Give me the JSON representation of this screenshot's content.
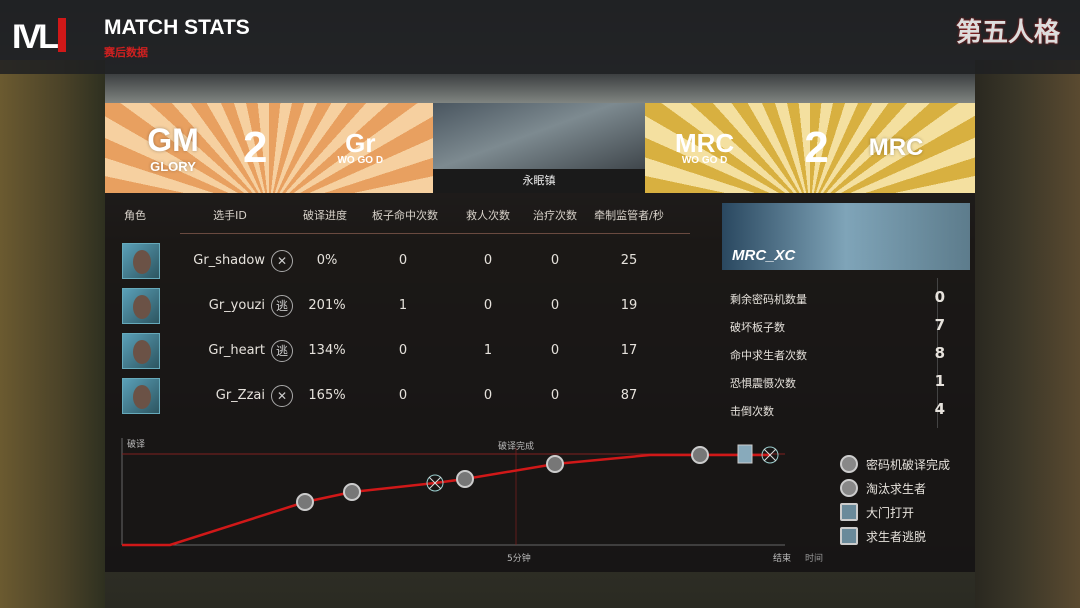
{
  "header": {
    "logo": "IVL",
    "title": "MATCH STATS",
    "subtitle": "赛后数据",
    "brand": "第五人格"
  },
  "teams": {
    "left": {
      "logo": "GM",
      "logo_sub": "GLORY",
      "score": "2",
      "tag": "Gr",
      "tag_sub": "WO GO D",
      "color": "#e8a060"
    },
    "right": {
      "logo": "MRC",
      "logo_sub": "WO GO D",
      "score": "2",
      "tag": "MRC",
      "color": "#d8b040"
    }
  },
  "map": {
    "name": "永眠镇"
  },
  "table": {
    "headers": [
      "角色",
      "选手ID",
      "破译进度",
      "板子命中次数",
      "救人次数",
      "治疗次数",
      "牵制监管者/秒"
    ],
    "rows": [
      {
        "player": "Gr_shadow",
        "status_icon": "eliminated-icon",
        "decode": "0%",
        "pallet_hits": "0",
        "rescues": "0",
        "heals": "0",
        "kite_seconds": "25"
      },
      {
        "player": "Gr_youzi",
        "status_icon": "escaped-icon",
        "decode": "201%",
        "pallet_hits": "1",
        "rescues": "0",
        "heals": "0",
        "kite_seconds": "19"
      },
      {
        "player": "Gr_heart",
        "status_icon": "escaped-icon",
        "decode": "134%",
        "pallet_hits": "0",
        "rescues": "1",
        "heals": "0",
        "kite_seconds": "17"
      },
      {
        "player": "Gr_Zzai",
        "status_icon": "eliminated-icon",
        "decode": "165%",
        "pallet_hits": "0",
        "rescues": "0",
        "heals": "0",
        "kite_seconds": "87"
      }
    ]
  },
  "hunter": {
    "player": "MRC_XC",
    "stats": [
      {
        "label": "剩余密码机数量",
        "value": "0"
      },
      {
        "label": "破坏板子数",
        "value": "7"
      },
      {
        "label": "命中求生者次数",
        "value": "8"
      },
      {
        "label": "恐惧震慑次数",
        "value": "1"
      },
      {
        "label": "击倒次数",
        "value": "4"
      }
    ]
  },
  "chart": {
    "ylabel": "破译",
    "threshold_label": "破译完成",
    "mid_label": "5分钟",
    "end_label": "结束",
    "xlabel": "时间",
    "line_color": "#d01818",
    "legend": [
      {
        "icon": "cipher-complete-icon",
        "label": "密码机破译完成"
      },
      {
        "icon": "eliminate-icon",
        "label": "淘汰求生者"
      },
      {
        "icon": "gate-open-icon",
        "label": "大门打开"
      },
      {
        "icon": "escape-icon",
        "label": "求生者逃脱"
      }
    ]
  }
}
